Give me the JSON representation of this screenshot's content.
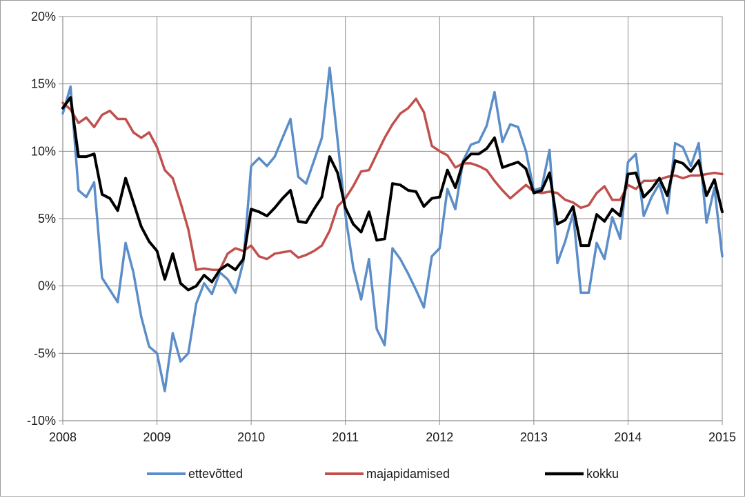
{
  "chart_data": {
    "type": "line",
    "ylim": [
      -10,
      20
    ],
    "xlim": [
      2008,
      2015
    ],
    "y_ticks": [
      "-10%",
      "-5%",
      "0%",
      "5%",
      "10%",
      "15%",
      "20%"
    ],
    "x_ticks": [
      "2008",
      "2009",
      "2010",
      "2011",
      "2012",
      "2013",
      "2014",
      "2015"
    ],
    "grid": "on",
    "legend_position": "bottom",
    "series": [
      {
        "name": "ettevõtted",
        "color": "#5b8ec8",
        "points": [
          [
            2008.0,
            12.8
          ],
          [
            2008.083,
            14.8
          ],
          [
            2008.167,
            7.1
          ],
          [
            2008.25,
            6.6
          ],
          [
            2008.333,
            7.7
          ],
          [
            2008.417,
            0.6
          ],
          [
            2008.5,
            -0.3
          ],
          [
            2008.583,
            -1.2
          ],
          [
            2008.667,
            3.2
          ],
          [
            2008.75,
            1.0
          ],
          [
            2008.833,
            -2.3
          ],
          [
            2008.917,
            -4.5
          ],
          [
            2009.0,
            -5.0
          ],
          [
            2009.083,
            -7.8
          ],
          [
            2009.167,
            -3.5
          ],
          [
            2009.25,
            -5.6
          ],
          [
            2009.333,
            -5.0
          ],
          [
            2009.417,
            -1.3
          ],
          [
            2009.5,
            0.2
          ],
          [
            2009.583,
            -0.6
          ],
          [
            2009.667,
            1.0
          ],
          [
            2009.75,
            0.5
          ],
          [
            2009.833,
            -0.5
          ],
          [
            2009.917,
            1.8
          ],
          [
            2010.0,
            8.9
          ],
          [
            2010.083,
            9.5
          ],
          [
            2010.167,
            8.9
          ],
          [
            2010.25,
            9.6
          ],
          [
            2010.333,
            11.0
          ],
          [
            2010.417,
            12.4
          ],
          [
            2010.5,
            8.1
          ],
          [
            2010.583,
            7.6
          ],
          [
            2010.667,
            9.3
          ],
          [
            2010.75,
            11.0
          ],
          [
            2010.833,
            16.2
          ],
          [
            2010.917,
            10.8
          ],
          [
            2011.0,
            5.3
          ],
          [
            2011.083,
            1.4
          ],
          [
            2011.167,
            -1.0
          ],
          [
            2011.25,
            2.0
          ],
          [
            2011.333,
            -3.2
          ],
          [
            2011.417,
            -4.4
          ],
          [
            2011.5,
            2.8
          ],
          [
            2011.583,
            2.0
          ],
          [
            2011.667,
            0.9
          ],
          [
            2011.75,
            -0.3
          ],
          [
            2011.833,
            -1.6
          ],
          [
            2011.917,
            2.2
          ],
          [
            2012.0,
            2.8
          ],
          [
            2012.083,
            7.2
          ],
          [
            2012.167,
            5.7
          ],
          [
            2012.25,
            9.3
          ],
          [
            2012.333,
            10.5
          ],
          [
            2012.417,
            10.7
          ],
          [
            2012.5,
            11.9
          ],
          [
            2012.583,
            14.4
          ],
          [
            2012.667,
            10.7
          ],
          [
            2012.75,
            12.0
          ],
          [
            2012.833,
            11.8
          ],
          [
            2012.917,
            10.0
          ],
          [
            2013.0,
            7.1
          ],
          [
            2013.083,
            7.3
          ],
          [
            2013.167,
            10.1
          ],
          [
            2013.25,
            1.7
          ],
          [
            2013.333,
            3.3
          ],
          [
            2013.417,
            5.4
          ],
          [
            2013.5,
            -0.5
          ],
          [
            2013.583,
            -0.5
          ],
          [
            2013.667,
            3.2
          ],
          [
            2013.75,
            2.0
          ],
          [
            2013.833,
            5.1
          ],
          [
            2013.917,
            3.5
          ],
          [
            2014.0,
            9.2
          ],
          [
            2014.083,
            9.8
          ],
          [
            2014.167,
            5.2
          ],
          [
            2014.25,
            6.6
          ],
          [
            2014.333,
            7.6
          ],
          [
            2014.417,
            5.4
          ],
          [
            2014.5,
            10.6
          ],
          [
            2014.583,
            10.3
          ],
          [
            2014.667,
            8.9
          ],
          [
            2014.75,
            10.6
          ],
          [
            2014.833,
            4.7
          ],
          [
            2014.917,
            7.3
          ],
          [
            2015.0,
            2.2
          ]
        ]
      },
      {
        "name": "majapidamised",
        "color": "#c0504d",
        "points": [
          [
            2008.0,
            13.6
          ],
          [
            2008.083,
            13.1
          ],
          [
            2008.167,
            12.1
          ],
          [
            2008.25,
            12.5
          ],
          [
            2008.333,
            11.8
          ],
          [
            2008.417,
            12.7
          ],
          [
            2008.5,
            13.0
          ],
          [
            2008.583,
            12.4
          ],
          [
            2008.667,
            12.4
          ],
          [
            2008.75,
            11.4
          ],
          [
            2008.833,
            11.0
          ],
          [
            2008.917,
            11.4
          ],
          [
            2009.0,
            10.3
          ],
          [
            2009.083,
            8.6
          ],
          [
            2009.167,
            8.0
          ],
          [
            2009.25,
            6.2
          ],
          [
            2009.333,
            4.2
          ],
          [
            2009.417,
            1.2
          ],
          [
            2009.5,
            1.3
          ],
          [
            2009.583,
            1.2
          ],
          [
            2009.667,
            1.2
          ],
          [
            2009.75,
            2.4
          ],
          [
            2009.833,
            2.8
          ],
          [
            2009.917,
            2.6
          ],
          [
            2010.0,
            3.0
          ],
          [
            2010.083,
            2.2
          ],
          [
            2010.167,
            2.0
          ],
          [
            2010.25,
            2.4
          ],
          [
            2010.333,
            2.5
          ],
          [
            2010.417,
            2.6
          ],
          [
            2010.5,
            2.1
          ],
          [
            2010.583,
            2.3
          ],
          [
            2010.667,
            2.6
          ],
          [
            2010.75,
            3.0
          ],
          [
            2010.833,
            4.1
          ],
          [
            2010.917,
            5.9
          ],
          [
            2011.0,
            6.5
          ],
          [
            2011.083,
            7.4
          ],
          [
            2011.167,
            8.5
          ],
          [
            2011.25,
            8.6
          ],
          [
            2011.333,
            9.8
          ],
          [
            2011.417,
            11.0
          ],
          [
            2011.5,
            12.0
          ],
          [
            2011.583,
            12.8
          ],
          [
            2011.667,
            13.2
          ],
          [
            2011.75,
            13.9
          ],
          [
            2011.833,
            12.9
          ],
          [
            2011.917,
            10.4
          ],
          [
            2012.0,
            10.0
          ],
          [
            2012.083,
            9.7
          ],
          [
            2012.167,
            8.8
          ],
          [
            2012.25,
            9.1
          ],
          [
            2012.333,
            9.1
          ],
          [
            2012.417,
            8.9
          ],
          [
            2012.5,
            8.6
          ],
          [
            2012.583,
            7.8
          ],
          [
            2012.667,
            7.1
          ],
          [
            2012.75,
            6.5
          ],
          [
            2012.833,
            7.0
          ],
          [
            2012.917,
            7.5
          ],
          [
            2013.0,
            7.0
          ],
          [
            2013.083,
            6.9
          ],
          [
            2013.167,
            7.0
          ],
          [
            2013.25,
            6.9
          ],
          [
            2013.333,
            6.4
          ],
          [
            2013.417,
            6.2
          ],
          [
            2013.5,
            5.8
          ],
          [
            2013.583,
            6.0
          ],
          [
            2013.667,
            6.9
          ],
          [
            2013.75,
            7.4
          ],
          [
            2013.833,
            6.4
          ],
          [
            2013.917,
            6.4
          ],
          [
            2014.0,
            7.5
          ],
          [
            2014.083,
            7.2
          ],
          [
            2014.167,
            7.8
          ],
          [
            2014.25,
            7.8
          ],
          [
            2014.333,
            7.9
          ],
          [
            2014.417,
            8.1
          ],
          [
            2014.5,
            8.2
          ],
          [
            2014.583,
            8.0
          ],
          [
            2014.667,
            8.2
          ],
          [
            2014.75,
            8.2
          ],
          [
            2014.833,
            8.3
          ],
          [
            2014.917,
            8.4
          ],
          [
            2015.0,
            8.3
          ]
        ]
      },
      {
        "name": "kokku",
        "color": "#000000",
        "points": [
          [
            2008.0,
            13.2
          ],
          [
            2008.083,
            14.0
          ],
          [
            2008.167,
            9.6
          ],
          [
            2008.25,
            9.6
          ],
          [
            2008.333,
            9.8
          ],
          [
            2008.417,
            6.8
          ],
          [
            2008.5,
            6.5
          ],
          [
            2008.583,
            5.6
          ],
          [
            2008.667,
            8.0
          ],
          [
            2008.75,
            6.2
          ],
          [
            2008.833,
            4.4
          ],
          [
            2008.917,
            3.3
          ],
          [
            2009.0,
            2.6
          ],
          [
            2009.083,
            0.5
          ],
          [
            2009.167,
            2.4
          ],
          [
            2009.25,
            0.2
          ],
          [
            2009.333,
            -0.3
          ],
          [
            2009.417,
            0.0
          ],
          [
            2009.5,
            0.8
          ],
          [
            2009.583,
            0.3
          ],
          [
            2009.667,
            1.2
          ],
          [
            2009.75,
            1.6
          ],
          [
            2009.833,
            1.2
          ],
          [
            2009.917,
            2.0
          ],
          [
            2010.0,
            5.7
          ],
          [
            2010.083,
            5.5
          ],
          [
            2010.167,
            5.2
          ],
          [
            2010.25,
            5.8
          ],
          [
            2010.333,
            6.5
          ],
          [
            2010.417,
            7.1
          ],
          [
            2010.5,
            4.8
          ],
          [
            2010.583,
            4.7
          ],
          [
            2010.667,
            5.7
          ],
          [
            2010.75,
            6.6
          ],
          [
            2010.833,
            9.6
          ],
          [
            2010.917,
            8.4
          ],
          [
            2011.0,
            5.8
          ],
          [
            2011.083,
            4.6
          ],
          [
            2011.167,
            4.0
          ],
          [
            2011.25,
            5.5
          ],
          [
            2011.333,
            3.4
          ],
          [
            2011.417,
            3.5
          ],
          [
            2011.5,
            7.6
          ],
          [
            2011.583,
            7.5
          ],
          [
            2011.667,
            7.1
          ],
          [
            2011.75,
            7.0
          ],
          [
            2011.833,
            5.9
          ],
          [
            2011.917,
            6.5
          ],
          [
            2012.0,
            6.6
          ],
          [
            2012.083,
            8.6
          ],
          [
            2012.167,
            7.3
          ],
          [
            2012.25,
            9.2
          ],
          [
            2012.333,
            9.8
          ],
          [
            2012.417,
            9.8
          ],
          [
            2012.5,
            10.2
          ],
          [
            2012.583,
            11.0
          ],
          [
            2012.667,
            8.8
          ],
          [
            2012.75,
            9.0
          ],
          [
            2012.833,
            9.2
          ],
          [
            2012.917,
            8.7
          ],
          [
            2013.0,
            6.9
          ],
          [
            2013.083,
            7.1
          ],
          [
            2013.167,
            8.4
          ],
          [
            2013.25,
            4.6
          ],
          [
            2013.333,
            4.9
          ],
          [
            2013.417,
            5.9
          ],
          [
            2013.5,
            3.0
          ],
          [
            2013.583,
            3.0
          ],
          [
            2013.667,
            5.3
          ],
          [
            2013.75,
            4.8
          ],
          [
            2013.833,
            5.7
          ],
          [
            2013.917,
            5.2
          ],
          [
            2014.0,
            8.3
          ],
          [
            2014.083,
            8.4
          ],
          [
            2014.167,
            6.6
          ],
          [
            2014.25,
            7.2
          ],
          [
            2014.333,
            8.0
          ],
          [
            2014.417,
            6.7
          ],
          [
            2014.5,
            9.3
          ],
          [
            2014.583,
            9.1
          ],
          [
            2014.667,
            8.5
          ],
          [
            2014.75,
            9.3
          ],
          [
            2014.833,
            6.7
          ],
          [
            2014.917,
            7.9
          ],
          [
            2015.0,
            5.5
          ]
        ]
      }
    ]
  }
}
